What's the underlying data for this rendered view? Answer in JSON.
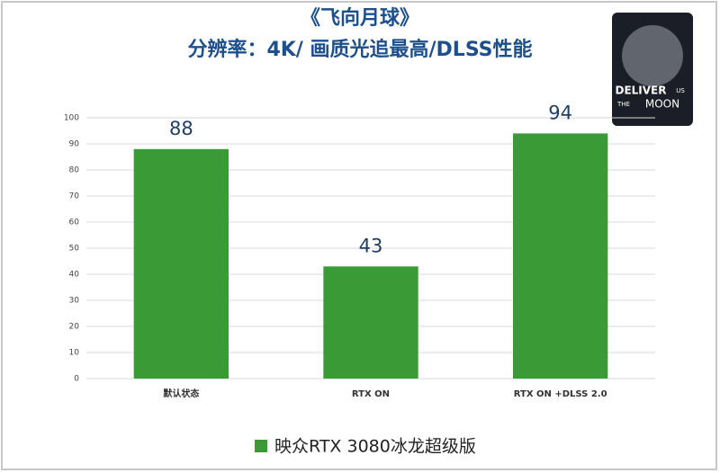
{
  "chart_data": {
    "type": "bar",
    "title": "《飞向月球》",
    "subtitle": "分辨率：4K/ 画质光追最高/DLSS性能",
    "categories": [
      "默认状态",
      "RTX ON",
      "RTX ON +DLSS 2.0"
    ],
    "series": [
      {
        "name": "映众RTX 3080冰龙超级版",
        "color": "#3a9a35",
        "values": [
          88,
          43,
          94
        ]
      }
    ],
    "ylim": [
      0,
      100
    ],
    "yticks": [
      0,
      10,
      20,
      30,
      40,
      50,
      60,
      70,
      80,
      90,
      100
    ],
    "grid": true
  },
  "cover": {
    "lines": [
      "DELIVER",
      "US",
      "THE",
      "MOON"
    ]
  }
}
